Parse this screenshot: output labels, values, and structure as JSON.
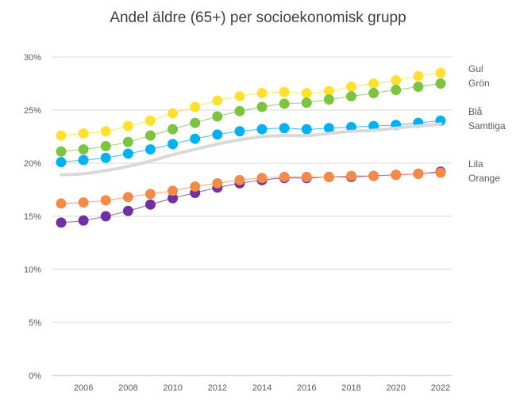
{
  "chart_data": {
    "type": "line",
    "title": "Andel äldre (65+) per socioekonomisk grupp",
    "xlabel": "",
    "ylabel": "",
    "x": [
      2005,
      2006,
      2007,
      2008,
      2009,
      2010,
      2011,
      2012,
      2013,
      2014,
      2015,
      2016,
      2017,
      2018,
      2019,
      2020,
      2021,
      2022
    ],
    "xticks": [
      "2006",
      "2008",
      "2010",
      "2012",
      "2014",
      "2016",
      "2018",
      "2020",
      "2022"
    ],
    "yticks": [
      "0%",
      "5%",
      "10%",
      "15%",
      "20%",
      "25%",
      "30%"
    ],
    "ylim": [
      0,
      30
    ],
    "grid": true,
    "legend_placement": "right",
    "series": [
      {
        "name": "Gul",
        "color": "#FFE033",
        "style": "markers",
        "values": [
          22.6,
          22.8,
          23.0,
          23.5,
          24.0,
          24.7,
          25.3,
          25.9,
          26.3,
          26.6,
          26.7,
          26.6,
          26.8,
          27.2,
          27.5,
          27.8,
          28.2,
          28.5
        ]
      },
      {
        "name": "Grön",
        "color": "#7DC242",
        "style": "markers",
        "values": [
          21.1,
          21.3,
          21.6,
          22.0,
          22.6,
          23.2,
          23.8,
          24.4,
          24.9,
          25.3,
          25.6,
          25.7,
          26.0,
          26.3,
          26.6,
          26.9,
          27.2,
          27.5
        ]
      },
      {
        "name": "Blå",
        "color": "#00B0F0",
        "style": "markers",
        "values": [
          20.1,
          20.3,
          20.5,
          20.9,
          21.3,
          21.8,
          22.3,
          22.7,
          23.0,
          23.2,
          23.3,
          23.2,
          23.3,
          23.4,
          23.5,
          23.6,
          23.8,
          24.0
        ]
      },
      {
        "name": "Samtliga",
        "color": "#D9D9D9",
        "style": "line",
        "values": [
          18.9,
          19.0,
          19.3,
          19.7,
          20.2,
          20.8,
          21.3,
          21.8,
          22.2,
          22.5,
          22.6,
          22.6,
          22.8,
          23.0,
          23.1,
          23.3,
          23.5,
          23.7
        ]
      },
      {
        "name": "Lila",
        "color": "#7030A0",
        "style": "markers",
        "values": [
          14.4,
          14.6,
          15.0,
          15.5,
          16.1,
          16.7,
          17.2,
          17.7,
          18.1,
          18.4,
          18.6,
          18.6,
          18.7,
          18.7,
          18.8,
          18.9,
          19.0,
          19.2
        ]
      },
      {
        "name": "Orange",
        "color": "#F28A4A",
        "style": "markers",
        "values": [
          16.2,
          16.3,
          16.5,
          16.8,
          17.1,
          17.4,
          17.8,
          18.1,
          18.4,
          18.6,
          18.7,
          18.7,
          18.7,
          18.8,
          18.8,
          18.9,
          19.0,
          19.1
        ]
      }
    ]
  }
}
